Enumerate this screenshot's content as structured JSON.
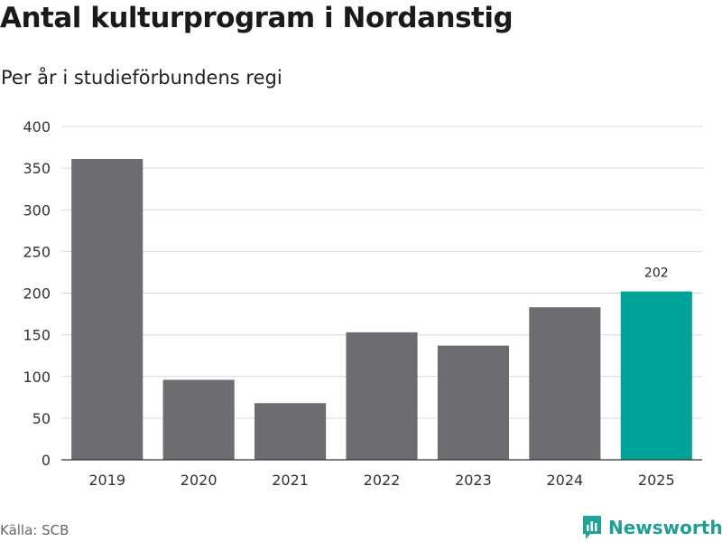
{
  "title": "Antal kulturprogram i Nordanstig",
  "subtitle": "Per år i studieförbundens regi",
  "source": "Källa: SCB",
  "brand": {
    "name": "Newsworthy",
    "icon": "newsworthy-logo-icon",
    "color": "#1fa396"
  },
  "colors": {
    "default_bar": "#6d6c71",
    "highlight_bar": "#00a398",
    "grid": "#d9d9d9",
    "axis": "#333333"
  },
  "chart_data": {
    "type": "bar",
    "title": "Antal kulturprogram i Nordanstig",
    "subtitle": "Per år i studieförbundens regi",
    "xlabel": "",
    "ylabel": "",
    "categories": [
      "2019",
      "2020",
      "2021",
      "2022",
      "2023",
      "2024",
      "2025"
    ],
    "values": [
      361,
      96,
      68,
      153,
      137,
      183,
      202
    ],
    "highlight": "2025",
    "data_labels": [
      {
        "category": "2025",
        "text": "202"
      }
    ],
    "ylim": [
      0,
      400
    ],
    "yticks": [
      0,
      50,
      100,
      150,
      200,
      250,
      300,
      350,
      400
    ],
    "grid": true
  }
}
